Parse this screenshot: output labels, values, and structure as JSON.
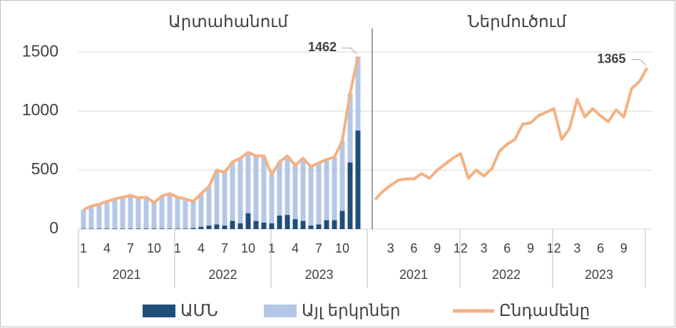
{
  "chart_data": [
    {
      "type": "bar",
      "title": "Արտահանում",
      "categories": [
        "1",
        null,
        null,
        "4",
        null,
        null,
        "7",
        null,
        null,
        "10",
        null,
        null,
        "1",
        null,
        null,
        "4",
        null,
        null,
        "7",
        null,
        null,
        "10",
        null,
        null,
        "1",
        null,
        null,
        "4",
        null,
        null,
        "7",
        null,
        null,
        "10",
        null,
        null
      ],
      "years": [
        "2021",
        "2022",
        "2023"
      ],
      "ylim": [
        0,
        1700
      ],
      "yticks": [
        0,
        500,
        1000,
        1500
      ],
      "grid": true,
      "series": [
        {
          "name": "ԱՄՆ",
          "color": "#1f4e79",
          "kind": "bar",
          "values": [
            3,
            3,
            5,
            5,
            5,
            5,
            5,
            5,
            5,
            5,
            5,
            5,
            5,
            5,
            10,
            20,
            30,
            40,
            30,
            70,
            50,
            135,
            70,
            55,
            50,
            115,
            120,
            85,
            70,
            30,
            40,
            75,
            75,
            155,
            565,
            835
          ]
        },
        {
          "name": "Այլ երկրներ",
          "color": "#b4c7e7",
          "kind": "bar",
          "values": [
            162,
            192,
            205,
            230,
            250,
            265,
            280,
            260,
            265,
            220,
            275,
            295,
            265,
            250,
            225,
            280,
            330,
            460,
            450,
            500,
            550,
            515,
            550,
            565,
            410,
            455,
            500,
            455,
            530,
            500,
            520,
            515,
            535,
            595,
            585,
            627
          ]
        },
        {
          "name": "Ընդամենը",
          "color": "#f4b183",
          "kind": "line",
          "values": [
            165,
            195,
            210,
            235,
            255,
            270,
            285,
            265,
            270,
            225,
            280,
            300,
            270,
            255,
            235,
            300,
            360,
            500,
            480,
            570,
            600,
            650,
            620,
            620,
            460,
            570,
            620,
            540,
            600,
            530,
            560,
            590,
            610,
            750,
            1150,
            1462
          ]
        }
      ]
    },
    {
      "type": "line",
      "title": "Ներմուծում",
      "categories": [
        null,
        null,
        "3",
        null,
        null,
        "6",
        null,
        null,
        "9",
        null,
        null,
        "12",
        null,
        null,
        "3",
        null,
        null,
        "6",
        null,
        null,
        "9",
        null,
        null,
        "12",
        null,
        null,
        "3",
        null,
        null,
        "6",
        null,
        null,
        "9",
        null,
        null,
        null
      ],
      "years": [
        "2021",
        "2022",
        "2023"
      ],
      "ylim": [
        0,
        1700
      ],
      "series": [
        {
          "name": "Ընդամենը",
          "color": "#f4b183",
          "kind": "line",
          "values": [
            250,
            320,
            370,
            415,
            425,
            425,
            470,
            430,
            500,
            550,
            600,
            640,
            430,
            500,
            450,
            510,
            660,
            720,
            760,
            890,
            900,
            960,
            990,
            1020,
            760,
            850,
            1100,
            950,
            1020,
            960,
            910,
            1010,
            950,
            1190,
            1250,
            1365
          ]
        }
      ]
    }
  ]
}
